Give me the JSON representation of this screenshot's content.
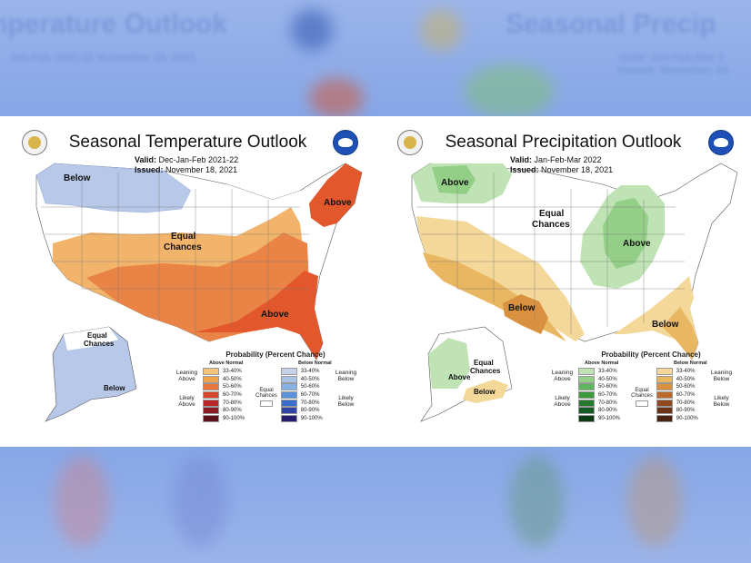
{
  "temperature": {
    "title": "Seasonal Temperature Outlook",
    "valid_label": "Valid:",
    "valid_value": "Dec-Jan-Feb 2021-22",
    "issued_label": "Issued:",
    "issued_value": "November 18, 2021",
    "regions": [
      {
        "label": "Below"
      },
      {
        "label": "Equal"
      },
      {
        "label": "Chances"
      },
      {
        "label": "Above"
      },
      {
        "label": "Above"
      },
      {
        "label": "Equal"
      },
      {
        "label": "Chances"
      },
      {
        "label": "Below"
      }
    ],
    "legend": {
      "title": "Probability (Percent Chance)",
      "above_header": "Above Normal",
      "below_header": "Below Normal",
      "leaning_above": "Leaning Above",
      "likely_above": "Likely Above",
      "leaning_below": "Leaning Below",
      "likely_below": "Likely Below",
      "equal_chances": "Equal Chances",
      "bins": [
        "33-40%",
        "40-50%",
        "50-60%",
        "60-70%",
        "70-80%",
        "80-90%",
        "90-100%"
      ],
      "above_colors": [
        "#f6c47c",
        "#f0a24a",
        "#e9763b",
        "#d8452a",
        "#b8262a",
        "#8b1a24",
        "#5a0f1a"
      ],
      "below_colors": [
        "#c5d2ea",
        "#a9c2e6",
        "#86b1e4",
        "#5a92dc",
        "#3a6ccc",
        "#3243a6",
        "#261c6e"
      ]
    }
  },
  "precipitation": {
    "title": "Seasonal Precipitation Outlook",
    "valid_label": "Valid:",
    "valid_value": "Jan-Feb-Mar 2022",
    "issued_label": "Issued:",
    "issued_value": "November 18, 2021",
    "regions": [
      {
        "label": "Above"
      },
      {
        "label": "Equal"
      },
      {
        "label": "Chances"
      },
      {
        "label": "Above"
      },
      {
        "label": "Below"
      },
      {
        "label": "Below"
      },
      {
        "label": "Above"
      },
      {
        "label": "Equal"
      },
      {
        "label": "Chances"
      },
      {
        "label": "Below"
      }
    ],
    "legend": {
      "title": "Probability (Percent Chance)",
      "above_header": "Above Normal",
      "below_header": "Below Normal",
      "leaning_above": "Leaning Above",
      "likely_above": "Likely Above",
      "leaning_below": "Leaning Below",
      "likely_below": "Likely Below",
      "equal_chances": "Equal Chances",
      "above_bins": [
        "33-40%",
        "40-50%",
        "50-60%",
        "60-70%",
        "70-80%",
        "80-90%",
        "90-100%"
      ],
      "below_bins": [
        "33-40%",
        "40-50%",
        "50-60%",
        "60-70%",
        "70-80%",
        "80-90%",
        "90-100%"
      ],
      "above_colors": [
        "#bfe3b4",
        "#93cf87",
        "#5fb55a",
        "#3a9a3e",
        "#24782e",
        "#155a22",
        "#0b3a15"
      ],
      "below_colors": [
        "#f3d89a",
        "#e9b761",
        "#d9913f",
        "#bc6a2c",
        "#8f4a21",
        "#6b3419",
        "#4a2211"
      ]
    }
  },
  "background": {
    "ghost_left": "nperature Outlook",
    "ghost_right": "Seasonal Precip",
    "ghost_sub1": "Jan-Feb 2021-22  November 18, 2021",
    "ghost_sub2": "Valid: Jan-Feb-Mar 2  Issued: November 18,"
  }
}
